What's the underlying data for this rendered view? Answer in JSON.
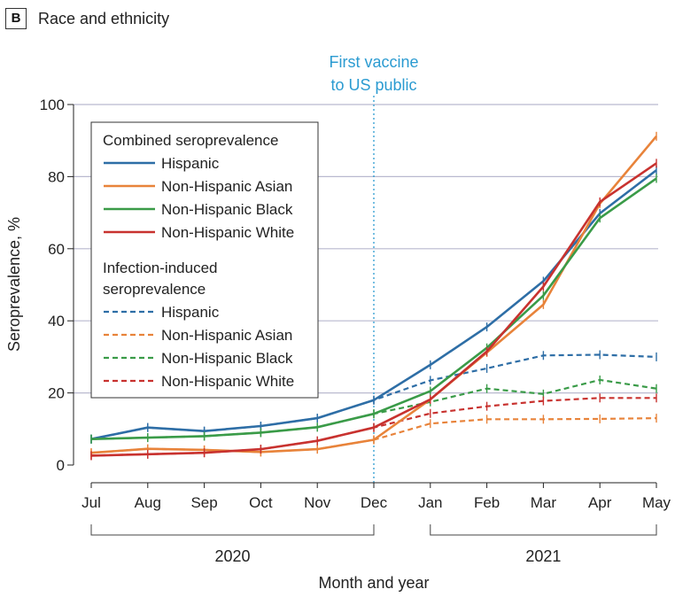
{
  "panel": {
    "letter": "B",
    "title": "Race and ethnicity"
  },
  "annotation": {
    "line1": "First vaccine",
    "line2": "to US public",
    "at": "Dec"
  },
  "chart_data": {
    "type": "line",
    "xlabel": "Month and year",
    "ylabel": "Seroprevalence, %",
    "ylim": [
      0,
      100
    ],
    "yticks": [
      0,
      20,
      40,
      60,
      80,
      100
    ],
    "grid": true,
    "categories": [
      "Jul",
      "Aug",
      "Sep",
      "Oct",
      "Nov",
      "Dec",
      "Jan",
      "Feb",
      "Mar",
      "Apr",
      "May"
    ],
    "year_groups": [
      {
        "label": "2020",
        "from": "Jul",
        "to": "Dec"
      },
      {
        "label": "2021",
        "from": "Jan",
        "to": "May"
      }
    ],
    "legend": {
      "placement": "top-left",
      "groups": [
        {
          "title": "Combined seroprevalence",
          "style": "solid"
        },
        {
          "title": "Infection-induced seroprevalence",
          "style": "dashed"
        }
      ]
    },
    "series": [
      {
        "name": "Hispanic",
        "group": 0,
        "color": "#2e6ea6",
        "values": [
          7.2,
          10.4,
          9.4,
          10.8,
          13.0,
          18.0,
          27.8,
          38.3,
          51.0,
          69.8,
          81.8
        ]
      },
      {
        "name": "Non-Hispanic Asian",
        "group": 0,
        "color": "#e8833a",
        "values": [
          3.4,
          4.5,
          4.2,
          3.6,
          4.4,
          7.0,
          18.2,
          31.2,
          44.5,
          72.5,
          91.2
        ]
      },
      {
        "name": "Non-Hispanic Black",
        "group": 0,
        "color": "#3a9b48",
        "values": [
          7.2,
          7.6,
          8.0,
          9.0,
          10.5,
          14.2,
          20.5,
          32.5,
          47.0,
          68.5,
          79.5
        ]
      },
      {
        "name": "Non-Hispanic White",
        "group": 0,
        "color": "#c8322f",
        "values": [
          2.6,
          3.0,
          3.4,
          4.4,
          6.7,
          10.4,
          18.2,
          31.5,
          49.5,
          73.0,
          83.7
        ]
      },
      {
        "name": "Hispanic",
        "group": 1,
        "color": "#2e6ea6",
        "values": [
          7.2,
          10.4,
          9.4,
          10.8,
          13.0,
          18.0,
          23.5,
          26.8,
          30.4,
          30.6,
          30.0
        ]
      },
      {
        "name": "Non-Hispanic Asian",
        "group": 1,
        "color": "#e8833a",
        "values": [
          3.4,
          4.5,
          4.2,
          3.6,
          4.4,
          7.0,
          11.5,
          12.7,
          12.7,
          12.8,
          13.0
        ]
      },
      {
        "name": "Non-Hispanic Black",
        "group": 1,
        "color": "#3a9b48",
        "values": [
          7.2,
          7.6,
          8.0,
          9.0,
          10.5,
          14.2,
          17.5,
          21.2,
          19.7,
          23.6,
          21.2
        ]
      },
      {
        "name": "Non-Hispanic White",
        "group": 1,
        "color": "#c8322f",
        "values": [
          2.6,
          3.0,
          3.4,
          4.4,
          6.7,
          10.4,
          14.3,
          16.3,
          17.8,
          18.6,
          18.6
        ]
      }
    ]
  }
}
